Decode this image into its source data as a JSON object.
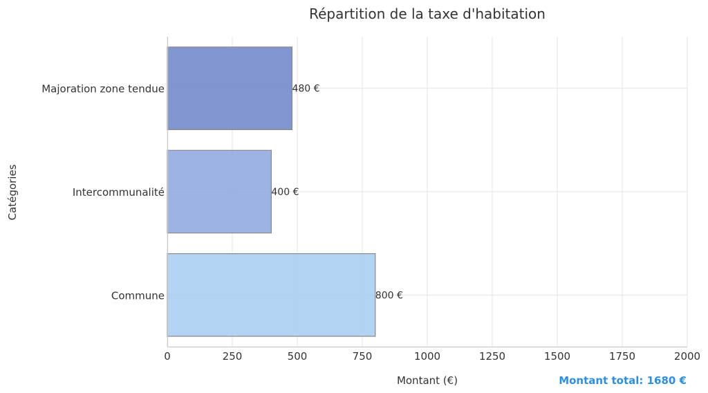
{
  "chart_data": {
    "type": "bar",
    "orientation": "horizontal",
    "title": "Répartition de la taxe d'habitation",
    "xlabel": "Montant (€)",
    "ylabel": "Catégories",
    "categories": [
      "Commune",
      "Intercommunalité",
      "Majoration zone tendue"
    ],
    "values": [
      800,
      400,
      480
    ],
    "value_labels": [
      "800 €",
      "400 €",
      "480 €"
    ],
    "colors": [
      "#a8cdf0",
      "#8ea9e0",
      "#6f87c8"
    ],
    "xlim": [
      0,
      2000
    ],
    "xticks": [
      0,
      250,
      500,
      750,
      1000,
      1250,
      1500,
      1750,
      2000
    ],
    "grid": true,
    "annotation": "Montant total: 1680 €",
    "annotation_color": "#2b8fe6"
  }
}
